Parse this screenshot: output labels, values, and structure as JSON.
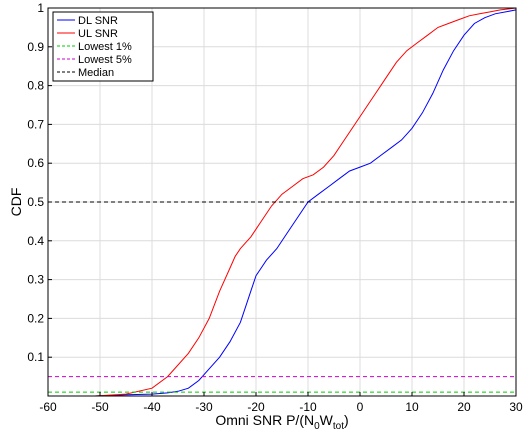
{
  "chart_data": {
    "type": "line",
    "xlabel": "Omni SNR P/(N0Wtot)",
    "ylabel": "CDF",
    "xlim": [
      -60,
      30
    ],
    "ylim": [
      0,
      1
    ],
    "x_ticks": [
      "-60",
      "-50",
      "-40",
      "-30",
      "-20",
      "-10",
      "0",
      "10",
      "20",
      "30"
    ],
    "y_ticks": [
      "0.1",
      "0.2",
      "0.3",
      "0.4",
      "0.5",
      "0.6",
      "0.7",
      "0.8",
      "0.9",
      "1"
    ],
    "grid": true,
    "legend_position": "top-left",
    "series": [
      {
        "name": "DL SNR",
        "color": "#0000ff",
        "style": "solid",
        "x": [
          -51,
          -45,
          -40,
          -37,
          -35,
          -33,
          -31,
          -29,
          -27,
          -25,
          -23,
          -22,
          -21,
          -20,
          -19,
          -18,
          -16,
          -14,
          -12,
          -10,
          -8,
          -6,
          -4,
          -2,
          0,
          2,
          4,
          6,
          8,
          10,
          12,
          14,
          16,
          18,
          20,
          22,
          24,
          26,
          28,
          30
        ],
        "y": [
          0.0,
          0.003,
          0.005,
          0.008,
          0.012,
          0.02,
          0.04,
          0.07,
          0.1,
          0.14,
          0.19,
          0.23,
          0.27,
          0.31,
          0.33,
          0.35,
          0.38,
          0.42,
          0.46,
          0.5,
          0.52,
          0.54,
          0.56,
          0.58,
          0.59,
          0.6,
          0.62,
          0.64,
          0.66,
          0.69,
          0.73,
          0.78,
          0.84,
          0.89,
          0.93,
          0.96,
          0.975,
          0.985,
          0.99,
          0.995
        ]
      },
      {
        "name": "UL SNR",
        "color": "#ff0000",
        "style": "solid",
        "x": [
          -51,
          -45,
          -40,
          -37,
          -35,
          -33,
          -31,
          -29,
          -27,
          -25,
          -24,
          -23,
          -21,
          -20,
          -19,
          -17,
          -15,
          -13,
          -11,
          -9,
          -7,
          -5,
          -3,
          -1,
          1,
          3,
          5,
          7,
          9,
          11,
          13,
          15,
          17,
          19,
          21,
          23,
          25,
          27,
          30
        ],
        "y": [
          0.0,
          0.005,
          0.02,
          0.05,
          0.08,
          0.11,
          0.15,
          0.2,
          0.27,
          0.33,
          0.36,
          0.38,
          0.41,
          0.43,
          0.45,
          0.49,
          0.52,
          0.54,
          0.56,
          0.57,
          0.59,
          0.62,
          0.66,
          0.7,
          0.74,
          0.78,
          0.82,
          0.86,
          0.89,
          0.91,
          0.93,
          0.95,
          0.96,
          0.97,
          0.98,
          0.985,
          0.99,
          0.995,
          1.0
        ]
      },
      {
        "name": "Lowest 1%",
        "color": "#00cc00",
        "style": "dashed",
        "x": [
          -60,
          30
        ],
        "y": [
          0.01,
          0.01
        ]
      },
      {
        "name": "Lowest 5%",
        "color": "#cc00cc",
        "style": "dashed",
        "x": [
          -60,
          30
        ],
        "y": [
          0.05,
          0.05
        ]
      },
      {
        "name": "Median",
        "color": "#000000",
        "style": "dashed",
        "x": [
          -60,
          30
        ],
        "y": [
          0.5,
          0.5
        ]
      }
    ]
  }
}
